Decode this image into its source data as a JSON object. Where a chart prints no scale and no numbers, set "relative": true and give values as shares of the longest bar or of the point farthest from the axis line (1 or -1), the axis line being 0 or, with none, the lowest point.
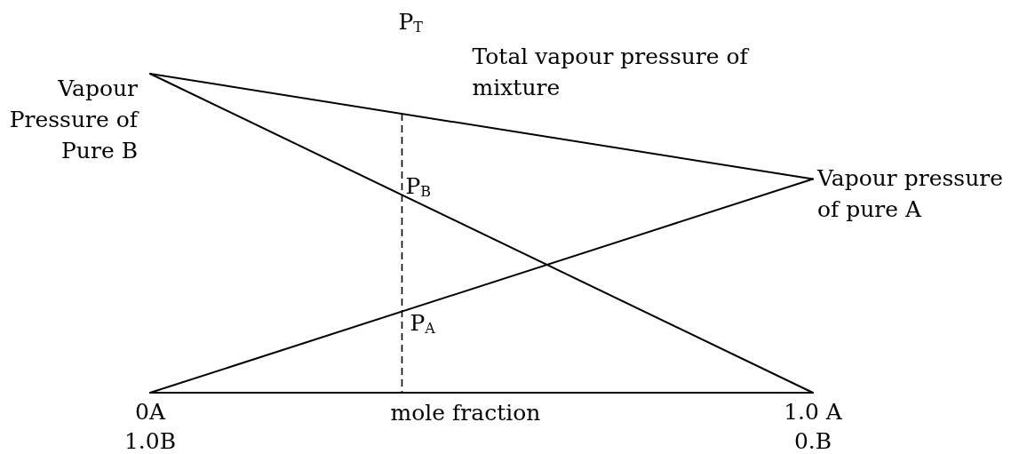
{
  "chart_data": {
    "type": "line",
    "relative": true,
    "x": [
      0,
      1
    ],
    "xlim": [
      0,
      1
    ],
    "xticks": [
      {
        "value": 0,
        "label": "0A"
      },
      {
        "value": 1,
        "label": "1.0 A"
      }
    ],
    "x2lim": [
      1,
      0
    ],
    "x2ticks": [
      {
        "value": 1,
        "label": "1.0B"
      },
      {
        "value": 0,
        "label": "0.B"
      }
    ],
    "xlabel": "mole fraction",
    "series": [
      {
        "color": "#000000",
        "values": [
          1,
          0
        ]
      },
      {
        "color": "#000000",
        "values": [
          0,
          0.67
        ]
      },
      {
        "name": "Total vapour pressure of mixture",
        "color": "#000000",
        "values": [
          1,
          0.67
        ]
      }
    ],
    "ref_lines": [
      {
        "axis": "x",
        "value": 0.38,
        "color": "#000000",
        "line_style": "dashed"
      }
    ],
    "annotations": [
      "P$_{T}$",
      {
        "text": "Vapour Pressure of Pure B",
        "x": 0,
        "y": 1
      },
      {
        "text": "Vapour pressure of pure A",
        "x": 1,
        "y": 0.67
      },
      {
        "text": "P$_{B}$",
        "x": 0.38,
        "y": 0.62
      },
      {
        "text": "P$_{A}$",
        "x": 0.38,
        "y": 0.25
      }
    ],
    "marker": "none",
    "line_style": "solid",
    "grid": false,
    "legend": false
  }
}
